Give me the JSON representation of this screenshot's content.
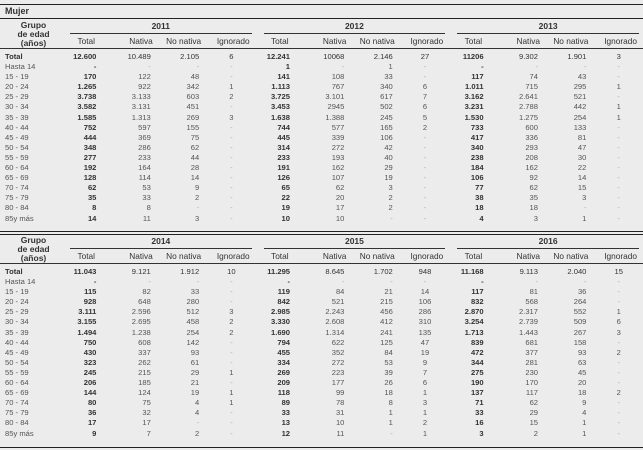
{
  "title": "Mujer",
  "age_group_header": [
    "Grupo",
    "de edad",
    "(años)"
  ],
  "column_headers": [
    "Total",
    "Nativa",
    "No nativa",
    "Ignorado"
  ],
  "age_groups": [
    "Total",
    "Hasta 14",
    "15 - 19",
    "20 - 24",
    "25 - 29",
    "30 - 34",
    "35 - 39",
    "40 - 44",
    "45 - 49",
    "50 - 54",
    "55 - 59",
    "60 - 64",
    "65 - 69",
    "70 - 74",
    "75 - 79",
    "80 - 84",
    "85y más"
  ],
  "sections": [
    {
      "years": [
        {
          "year": "2011",
          "rows": [
            [
              "12.600",
              "10.489",
              "2.105",
              "6"
            ],
            [
              "-",
              "-",
              "-",
              "-"
            ],
            [
              "170",
              "122",
              "48",
              "-"
            ],
            [
              "1.265",
              "922",
              "342",
              "1"
            ],
            [
              "3.738",
              "3.133",
              "603",
              "2"
            ],
            [
              "3.582",
              "3.131",
              "451",
              "-"
            ],
            [
              "1.585",
              "1.313",
              "269",
              "3"
            ],
            [
              "752",
              "597",
              "155",
              "-"
            ],
            [
              "444",
              "369",
              "75",
              "-"
            ],
            [
              "348",
              "286",
              "62",
              "-"
            ],
            [
              "277",
              "233",
              "44",
              "-"
            ],
            [
              "192",
              "164",
              "28",
              "-"
            ],
            [
              "128",
              "114",
              "14",
              "-"
            ],
            [
              "62",
              "53",
              "9",
              "-"
            ],
            [
              "35",
              "33",
              "2",
              "-"
            ],
            [
              "8",
              "8",
              "-",
              "-"
            ],
            [
              "14",
              "11",
              "3",
              "-"
            ]
          ]
        },
        {
          "year": "2012",
          "rows": [
            [
              "12.241",
              "10068",
              "2.146",
              "27"
            ],
            [
              "1",
              "-",
              "1",
              "-"
            ],
            [
              "141",
              "108",
              "33",
              "-"
            ],
            [
              "1.113",
              "767",
              "340",
              "6"
            ],
            [
              "3.725",
              "3.101",
              "617",
              "7"
            ],
            [
              "3.453",
              "2945",
              "502",
              "6"
            ],
            [
              "1.638",
              "1.388",
              "245",
              "5"
            ],
            [
              "744",
              "577",
              "165",
              "2"
            ],
            [
              "445",
              "339",
              "106",
              "-"
            ],
            [
              "314",
              "272",
              "42",
              "-"
            ],
            [
              "233",
              "193",
              "40",
              "-"
            ],
            [
              "191",
              "162",
              "29",
              "-"
            ],
            [
              "126",
              "107",
              "19",
              "-"
            ],
            [
              "65",
              "62",
              "3",
              "-"
            ],
            [
              "22",
              "20",
              "2",
              "-"
            ],
            [
              "19",
              "17",
              "2",
              "-"
            ],
            [
              "10",
              "10",
              "-",
              "-"
            ]
          ]
        },
        {
          "year": "2013",
          "rows": [
            [
              "11206",
              "9.302",
              "1.901",
              "3"
            ],
            [
              "-",
              "-",
              "-",
              "-"
            ],
            [
              "117",
              "74",
              "43",
              "-"
            ],
            [
              "1.011",
              "715",
              "295",
              "1"
            ],
            [
              "3.162",
              "2.641",
              "521",
              "-"
            ],
            [
              "3.231",
              "2.788",
              "442",
              "1"
            ],
            [
              "1.530",
              "1.275",
              "254",
              "1"
            ],
            [
              "733",
              "600",
              "133",
              "-"
            ],
            [
              "417",
              "336",
              "81",
              "-"
            ],
            [
              "340",
              "293",
              "47",
              "-"
            ],
            [
              "238",
              "208",
              "30",
              "-"
            ],
            [
              "184",
              "162",
              "22",
              "-"
            ],
            [
              "106",
              "92",
              "14",
              "-"
            ],
            [
              "77",
              "62",
              "15",
              "-"
            ],
            [
              "38",
              "35",
              "3",
              "-"
            ],
            [
              "18",
              "18",
              "-",
              "-"
            ],
            [
              "4",
              "3",
              "1",
              "-"
            ]
          ]
        }
      ]
    },
    {
      "years": [
        {
          "year": "2014",
          "rows": [
            [
              "11.043",
              "9.121",
              "1.912",
              "10"
            ],
            [
              "-",
              "-",
              "-",
              "-"
            ],
            [
              "115",
              "82",
              "33",
              "-"
            ],
            [
              "928",
              "648",
              "280",
              "-"
            ],
            [
              "3.111",
              "2.596",
              "512",
              "3"
            ],
            [
              "3.155",
              "2.695",
              "458",
              "2"
            ],
            [
              "1.494",
              "1.238",
              "254",
              "2"
            ],
            [
              "750",
              "608",
              "142",
              "-"
            ],
            [
              "430",
              "337",
              "93",
              "-"
            ],
            [
              "323",
              "262",
              "61",
              "-"
            ],
            [
              "245",
              "215",
              "29",
              "1"
            ],
            [
              "206",
              "185",
              "21",
              "-"
            ],
            [
              "144",
              "124",
              "19",
              "1"
            ],
            [
              "80",
              "75",
              "4",
              "1"
            ],
            [
              "36",
              "32",
              "4",
              "-"
            ],
            [
              "17",
              "17",
              "-",
              "-"
            ],
            [
              "9",
              "7",
              "2",
              "-"
            ]
          ]
        },
        {
          "year": "2015",
          "rows": [
            [
              "11.295",
              "8.645",
              "1.702",
              "948"
            ],
            [
              "-",
              "-",
              "-",
              "-"
            ],
            [
              "119",
              "84",
              "21",
              "14"
            ],
            [
              "842",
              "521",
              "215",
              "106"
            ],
            [
              "2.985",
              "2.243",
              "456",
              "286"
            ],
            [
              "3.330",
              "2.608",
              "412",
              "310"
            ],
            [
              "1.690",
              "1.314",
              "241",
              "135"
            ],
            [
              "794",
              "622",
              "125",
              "47"
            ],
            [
              "455",
              "352",
              "84",
              "19"
            ],
            [
              "334",
              "272",
              "53",
              "9"
            ],
            [
              "269",
              "223",
              "39",
              "7"
            ],
            [
              "209",
              "177",
              "26",
              "6"
            ],
            [
              "118",
              "99",
              "18",
              "1"
            ],
            [
              "89",
              "78",
              "8",
              "3"
            ],
            [
              "33",
              "31",
              "1",
              "1"
            ],
            [
              "13",
              "10",
              "1",
              "2"
            ],
            [
              "12",
              "11",
              "-",
              "1"
            ]
          ]
        },
        {
          "year": "2016",
          "rows": [
            [
              "11.168",
              "9.113",
              "2.040",
              "15"
            ],
            [
              "-",
              "-",
              "-",
              "-"
            ],
            [
              "117",
              "81",
              "36",
              "-"
            ],
            [
              "832",
              "568",
              "264",
              "-"
            ],
            [
              "2.870",
              "2.317",
              "552",
              "1"
            ],
            [
              "3.254",
              "2.739",
              "509",
              "6"
            ],
            [
              "1.713",
              "1.443",
              "267",
              "3"
            ],
            [
              "839",
              "681",
              "158",
              "-"
            ],
            [
              "472",
              "377",
              "93",
              "2"
            ],
            [
              "344",
              "281",
              "63",
              "-"
            ],
            [
              "275",
              "230",
              "45",
              "-"
            ],
            [
              "190",
              "170",
              "20",
              "-"
            ],
            [
              "137",
              "117",
              "18",
              "2"
            ],
            [
              "71",
              "62",
              "9",
              "-"
            ],
            [
              "33",
              "29",
              "4",
              "-"
            ],
            [
              "16",
              "15",
              "1",
              "-"
            ],
            [
              "3",
              "2",
              "1",
              "-"
            ]
          ]
        }
      ]
    }
  ]
}
